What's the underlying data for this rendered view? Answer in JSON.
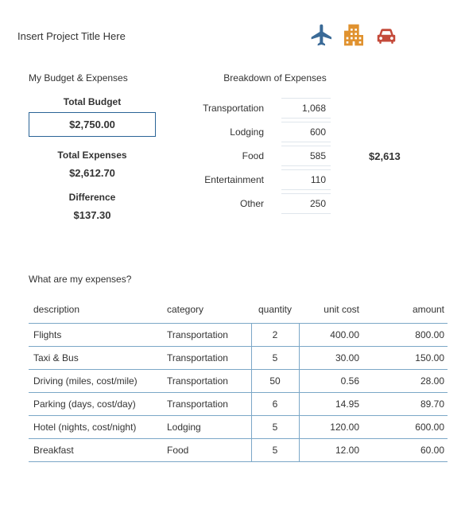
{
  "header": {
    "project_title": "Insert Project Title Here",
    "icon_colors": {
      "plane": "#3a6a97",
      "building": "#e0922f",
      "car": "#c44a3a"
    }
  },
  "budget": {
    "section_label": "My Budget & Expenses",
    "total_budget_label": "Total Budget",
    "total_budget_value": "$2,750.00",
    "total_expenses_label": "Total Expenses",
    "total_expenses_value": "$2,612.70",
    "difference_label": "Difference",
    "difference_value": "$137.30"
  },
  "breakdown": {
    "section_label": "Breakdown of Expenses",
    "rows": [
      {
        "name": "Transportation",
        "value": "1,068"
      },
      {
        "name": "Lodging",
        "value": "600"
      },
      {
        "name": "Food",
        "value": "585"
      },
      {
        "name": "Entertainment",
        "value": "110"
      },
      {
        "name": "Other",
        "value": "250"
      }
    ],
    "total": "$2,613"
  },
  "expenses": {
    "title": "What are my expenses?",
    "columns": {
      "description": "description",
      "category": "category",
      "quantity": "quantity",
      "unit_cost": "unit cost",
      "amount": "amount"
    },
    "rows": [
      {
        "description": "Flights",
        "category": "Transportation",
        "quantity": "2",
        "unit_cost": "400.00",
        "amount": "800.00"
      },
      {
        "description": "Taxi & Bus",
        "category": "Transportation",
        "quantity": "5",
        "unit_cost": "30.00",
        "amount": "150.00"
      },
      {
        "description": "Driving (miles, cost/mile)",
        "category": "Transportation",
        "quantity": "50",
        "unit_cost": "0.56",
        "amount": "28.00"
      },
      {
        "description": "Parking (days, cost/day)",
        "category": "Transportation",
        "quantity": "6",
        "unit_cost": "14.95",
        "amount": "89.70"
      },
      {
        "description": "Hotel (nights, cost/night)",
        "category": "Lodging",
        "quantity": "5",
        "unit_cost": "120.00",
        "amount": "600.00"
      },
      {
        "description": "Breakfast",
        "category": "Food",
        "quantity": "5",
        "unit_cost": "12.00",
        "amount": "60.00"
      }
    ]
  },
  "style": {
    "row_border_color": "#7ba7c7",
    "breakdown_cell_border": "#e0e6ec",
    "budget_box_border": "#2a6496"
  }
}
